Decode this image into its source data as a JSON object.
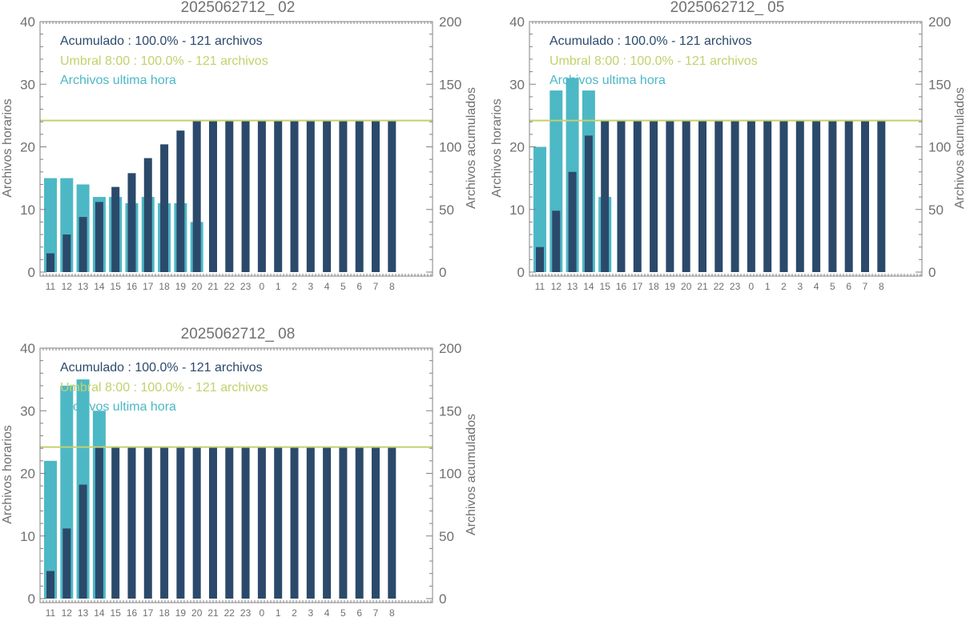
{
  "colors": {
    "hourly": "#4db8c5",
    "cumulative": "#2b4a6b",
    "threshold": "#c2d16c",
    "axis": "#707070",
    "frame": "#808080"
  },
  "chart_data": [
    {
      "type": "bar",
      "title": "2025062712_ 02",
      "ylabel": "Archivos horarios",
      "y2label": "Archivos acumulados",
      "ylim": [
        0,
        40
      ],
      "y2lim": [
        0,
        200
      ],
      "yticks": [
        "0",
        "10",
        "20",
        "30",
        "40"
      ],
      "y2ticks": [
        "0",
        "50",
        "100",
        "150",
        "200"
      ],
      "categories": [
        "11",
        "12",
        "13",
        "14",
        "15",
        "16",
        "17",
        "18",
        "19",
        "20",
        "21",
        "22",
        "23",
        "0",
        "1",
        "2",
        "3",
        "4",
        "5",
        "6",
        "7",
        "8"
      ],
      "legend": [
        "Acumulado : 100.0% - 121 archivos",
        "Umbral 8:00 : 100.0% - 121 archivos",
        "Archivos ultima hora"
      ],
      "threshold": 121,
      "series": [
        {
          "name": "Archivos ultima hora",
          "axis": "left",
          "values": [
            15,
            15,
            14,
            12,
            12,
            11,
            12,
            11,
            11,
            8,
            null,
            null,
            null,
            null,
            null,
            null,
            null,
            null,
            null,
            null,
            null,
            null
          ]
        },
        {
          "name": "Acumulado",
          "axis": "right",
          "values": [
            15,
            30,
            44,
            56,
            68,
            79,
            91,
            102,
            113,
            121,
            121,
            121,
            121,
            121,
            121,
            121,
            121,
            121,
            121,
            121,
            121,
            121
          ]
        }
      ]
    },
    {
      "type": "bar",
      "title": "2025062712_ 05",
      "ylabel": "Archivos horarios",
      "y2label": "Archivos acumulados",
      "ylim": [
        0,
        40
      ],
      "y2lim": [
        0,
        200
      ],
      "yticks": [
        "0",
        "10",
        "20",
        "30",
        "40"
      ],
      "y2ticks": [
        "0",
        "50",
        "100",
        "150",
        "200"
      ],
      "categories": [
        "11",
        "12",
        "13",
        "14",
        "15",
        "16",
        "17",
        "18",
        "19",
        "20",
        "21",
        "22",
        "23",
        "0",
        "1",
        "2",
        "3",
        "4",
        "5",
        "6",
        "7",
        "8"
      ],
      "legend": [
        "Acumulado : 100.0% - 121 archivos",
        "Umbral 8:00 : 100.0% - 121 archivos",
        "Archivos ultima hora"
      ],
      "threshold": 121,
      "series": [
        {
          "name": "Archivos ultima hora",
          "axis": "left",
          "values": [
            20,
            29,
            31,
            29,
            12,
            null,
            null,
            null,
            null,
            null,
            null,
            null,
            null,
            null,
            null,
            null,
            null,
            null,
            null,
            null,
            null,
            null
          ]
        },
        {
          "name": "Acumulado",
          "axis": "right",
          "values": [
            20,
            49,
            80,
            109,
            121,
            121,
            121,
            121,
            121,
            121,
            121,
            121,
            121,
            121,
            121,
            121,
            121,
            121,
            121,
            121,
            121,
            121
          ]
        }
      ]
    },
    {
      "type": "bar",
      "title": "2025062712_ 08",
      "ylabel": "Archivos horarios",
      "y2label": "Archivos acumulados",
      "ylim": [
        0,
        40
      ],
      "y2lim": [
        0,
        200
      ],
      "yticks": [
        "0",
        "10",
        "20",
        "30",
        "40"
      ],
      "y2ticks": [
        "0",
        "50",
        "100",
        "150",
        "200"
      ],
      "categories": [
        "11",
        "12",
        "13",
        "14",
        "15",
        "16",
        "17",
        "18",
        "19",
        "20",
        "21",
        "22",
        "23",
        "0",
        "1",
        "2",
        "3",
        "4",
        "5",
        "6",
        "7",
        "8"
      ],
      "legend": [
        "Acumulado : 100.0% - 121 archivos",
        "Umbral 8:00 : 100.0% - 121 archivos",
        "Archivos ultima hora"
      ],
      "threshold": 121,
      "series": [
        {
          "name": "Archivos ultima hora",
          "axis": "left",
          "values": [
            22,
            34,
            35,
            30,
            null,
            null,
            null,
            null,
            null,
            null,
            null,
            null,
            null,
            null,
            null,
            null,
            null,
            null,
            null,
            null,
            null,
            null
          ]
        },
        {
          "name": "Acumulado",
          "axis": "right",
          "values": [
            22,
            56,
            91,
            121,
            121,
            121,
            121,
            121,
            121,
            121,
            121,
            121,
            121,
            121,
            121,
            121,
            121,
            121,
            121,
            121,
            121,
            121
          ]
        }
      ]
    }
  ]
}
